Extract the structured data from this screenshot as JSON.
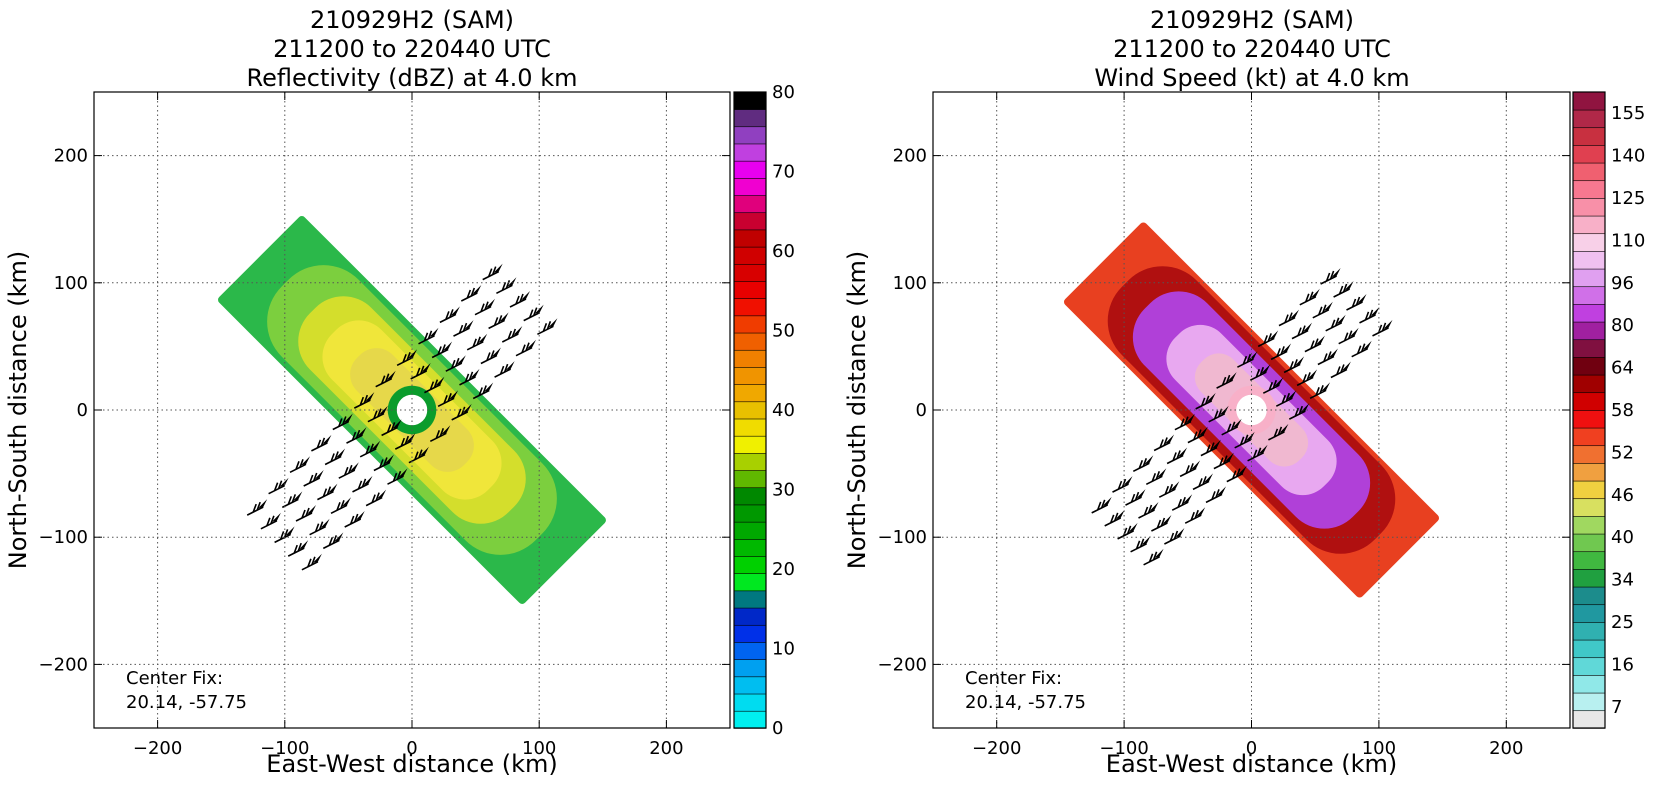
{
  "chart_data": [
    {
      "type": "heatmap",
      "title_lines": [
        "210929H2 (SAM)",
        "211200 to 220440 UTC",
        "Reflectivity (dBZ) at 4.0 km"
      ],
      "xlabel": "East-West distance (km)",
      "ylabel": "North-South distance (km)",
      "xlim": [
        -250,
        250
      ],
      "ylim": [
        -250,
        250
      ],
      "xticks": [
        -200,
        -100,
        0,
        100,
        200
      ],
      "yticks": [
        -200,
        -100,
        0,
        100,
        200
      ],
      "grid": true,
      "annotation_lines": [
        "Center Fix:",
        "20.14, -57.75"
      ],
      "swath": {
        "center": [
          0,
          0
        ],
        "length_km": 340,
        "width_km": 95,
        "angle_deg": -45
      },
      "colorbar": {
        "label_values": [
          0,
          10,
          20,
          30,
          40,
          50,
          60,
          70,
          80
        ],
        "colors": [
          "#00f0f0",
          "#00dcf0",
          "#00bef0",
          "#00a0f0",
          "#0064f0",
          "#0030e8",
          "#0028c8",
          "#007880",
          "#00e820",
          "#00d000",
          "#00b800",
          "#00a800",
          "#009800",
          "#008800",
          "#60b800",
          "#a8d000",
          "#f0f000",
          "#f0dc00",
          "#e8c000",
          "#f0a800",
          "#f09400",
          "#f08000",
          "#f06000",
          "#f03c00",
          "#f01000",
          "#e80000",
          "#d80000",
          "#d00000",
          "#c00000",
          "#c80030",
          "#e0007c",
          "#f000d0",
          "#e800f0",
          "#c040e0",
          "#9040c0",
          "#602c80",
          "#000000"
        ]
      },
      "field_levels": [
        {
          "scale": 1.0,
          "color": "#2bb84a"
        },
        {
          "scale": 0.78,
          "color": "#7ccf3e"
        },
        {
          "scale": 0.6,
          "color": "#d4de2c"
        },
        {
          "scale": 0.46,
          "color": "#f0e63a"
        },
        {
          "scale": 0.3,
          "color": "#e6d84a"
        }
      ],
      "eye": {
        "center": [
          0,
          0
        ],
        "radius": 12,
        "ring_color": "#0b9c2c"
      }
    },
    {
      "type": "heatmap",
      "title_lines": [
        "210929H2 (SAM)",
        "211200 to 220440 UTC",
        "Wind Speed (kt) at 4.0 km"
      ],
      "xlabel": "East-West distance (km)",
      "ylabel": "North-South distance (km)",
      "xlim": [
        -250,
        250
      ],
      "ylim": [
        -250,
        250
      ],
      "xticks": [
        -200,
        -100,
        0,
        100,
        200
      ],
      "yticks": [
        -200,
        -100,
        0,
        100,
        200
      ],
      "grid": true,
      "annotation_lines": [
        "Center Fix:",
        "20.14, -57.75"
      ],
      "swath": {
        "center": [
          0,
          0
        ],
        "length_km": 330,
        "width_km": 90,
        "angle_deg": -45
      },
      "colorbar": {
        "label_values": [
          7,
          16,
          25,
          34,
          40,
          46,
          52,
          58,
          64,
          80,
          96,
          110,
          125,
          140,
          155
        ],
        "colors": [
          "#e8e8e8",
          "#b8f0f0",
          "#90e8e8",
          "#60d8d8",
          "#40c8c8",
          "#30b0b0",
          "#2098a0",
          "#1c8c8c",
          "#20a040",
          "#40b840",
          "#70c850",
          "#a0d860",
          "#d8e060",
          "#f0d040",
          "#f0a040",
          "#f07030",
          "#f04020",
          "#f01010",
          "#d00000",
          "#a00000",
          "#700010",
          "#801040",
          "#a020a0",
          "#c040e0",
          "#d070e8",
          "#e0a0f0",
          "#f0c0f0",
          "#f8d0e8",
          "#f8b0c8",
          "#f890a8",
          "#f87890",
          "#f06070",
          "#e04050",
          "#c83040",
          "#b02848",
          "#901440"
        ]
      },
      "field_levels": [
        {
          "scale": 1.0,
          "color": "#e84020"
        },
        {
          "scale": 0.8,
          "color": "#b01010"
        },
        {
          "scale": 0.65,
          "color": "#b040d8"
        },
        {
          "scale": 0.45,
          "color": "#e8a8f0"
        },
        {
          "scale": 0.28,
          "color": "#f0b8d0"
        }
      ],
      "eye": {
        "center": [
          0,
          0
        ],
        "radius": 12,
        "ring_color": "#f8b0c8"
      }
    }
  ]
}
